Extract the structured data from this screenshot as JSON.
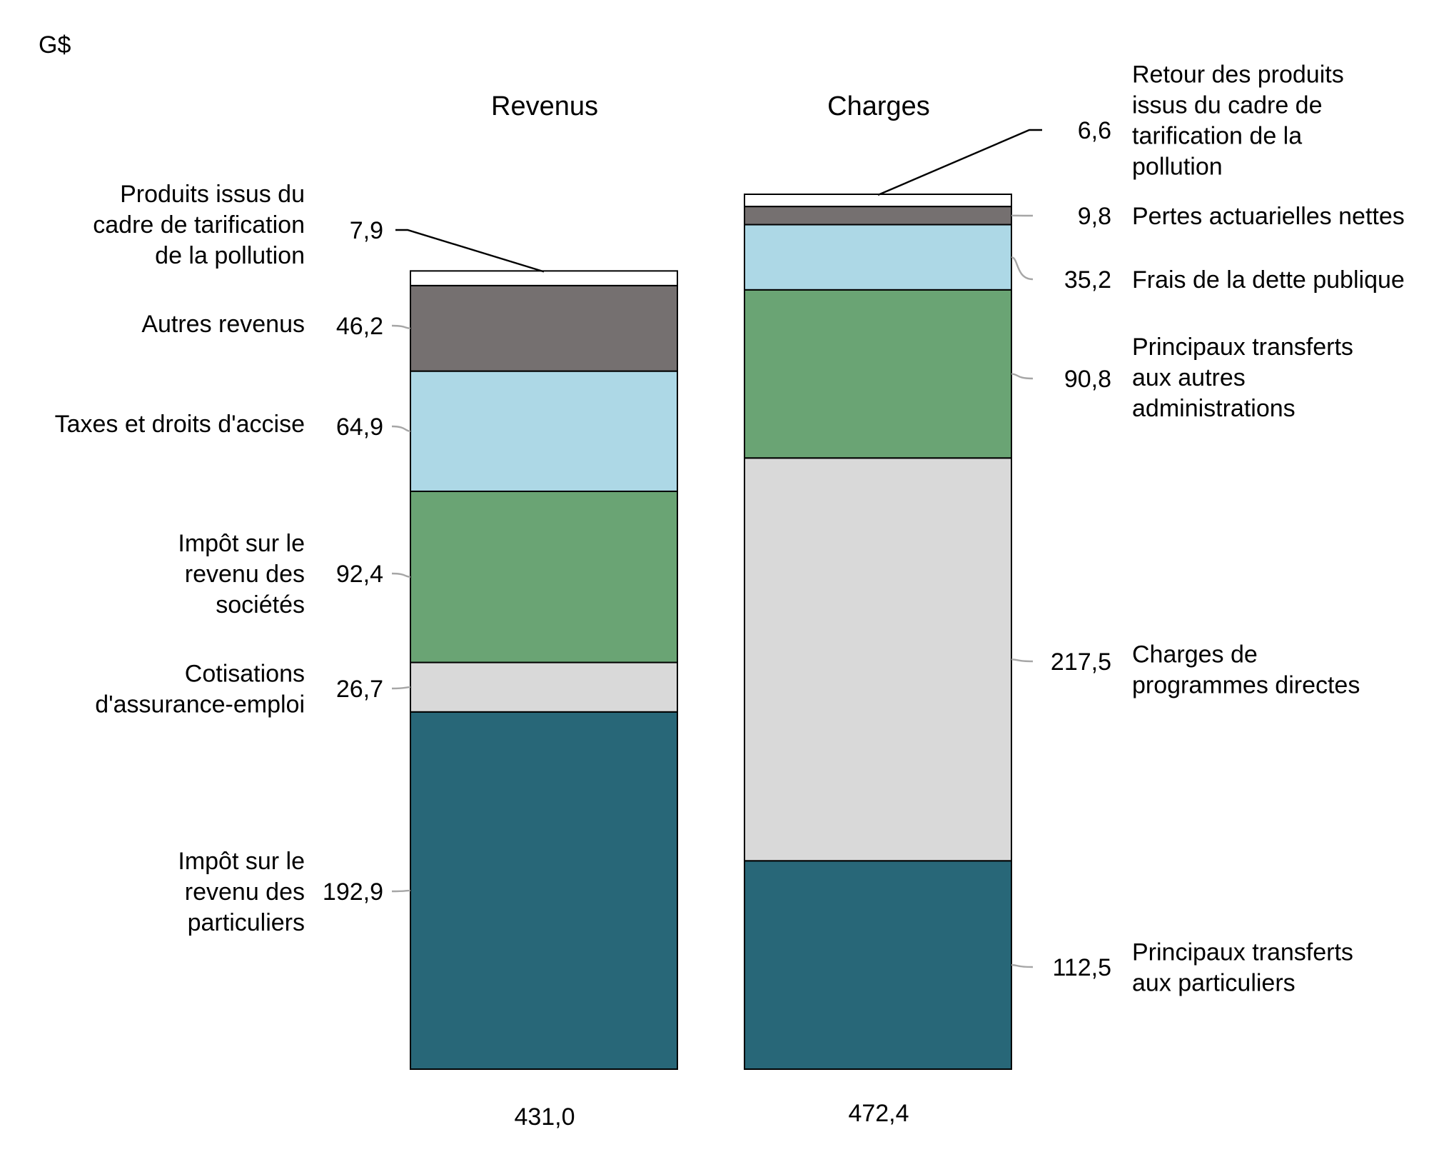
{
  "chart_data": {
    "type": "bar",
    "stacked": true,
    "unit_label": "G$",
    "scale_max": 472.4,
    "bars": [
      {
        "title": "Revenus",
        "total_label": "431,0",
        "label_side": "left",
        "segments": [
          {
            "label": "Impôt sur le revenu des particuliers",
            "value": 192.9,
            "value_label": "192,9",
            "color": "#286778"
          },
          {
            "label": "Cotisations d'assurance-emploi",
            "value": 26.7,
            "value_label": "26,7",
            "color": "#d9d9d9"
          },
          {
            "label": "Impôt sur le revenu des sociétés",
            "value": 92.4,
            "value_label": "92,4",
            "color": "#6aa474"
          },
          {
            "label": "Taxes et droits d'accise",
            "value": 64.9,
            "value_label": "64,9",
            "color": "#add8e6"
          },
          {
            "label": "Autres revenus",
            "value": 46.2,
            "value_label": "46,2",
            "color": "#757070"
          },
          {
            "label": "Produits issus du cadre de tarification de la pollution",
            "value": 7.9,
            "value_label": "7,9",
            "color": "#ffffff"
          }
        ]
      },
      {
        "title": "Charges",
        "total_label": "472,4",
        "label_side": "right",
        "segments": [
          {
            "label": "Principaux transferts aux particuliers",
            "value": 112.5,
            "value_label": "112,5",
            "color": "#286778"
          },
          {
            "label": "Charges de programmes directes",
            "value": 217.5,
            "value_label": "217,5",
            "color": "#d9d9d9"
          },
          {
            "label": "Principaux transferts aux autres administrations",
            "value": 90.8,
            "value_label": "90,8",
            "color": "#6aa474"
          },
          {
            "label": "Frais de la dette publique",
            "value": 35.2,
            "value_label": "35,2",
            "color": "#add8e6"
          },
          {
            "label": "Pertes actuarielles nettes",
            "value": 9.8,
            "value_label": "9,8",
            "color": "#757070"
          },
          {
            "label": "Retour des produits issus du cadre de tarification de la pollution",
            "value": 6.6,
            "value_label": "6,6",
            "color": "#ffffff"
          }
        ]
      }
    ]
  }
}
